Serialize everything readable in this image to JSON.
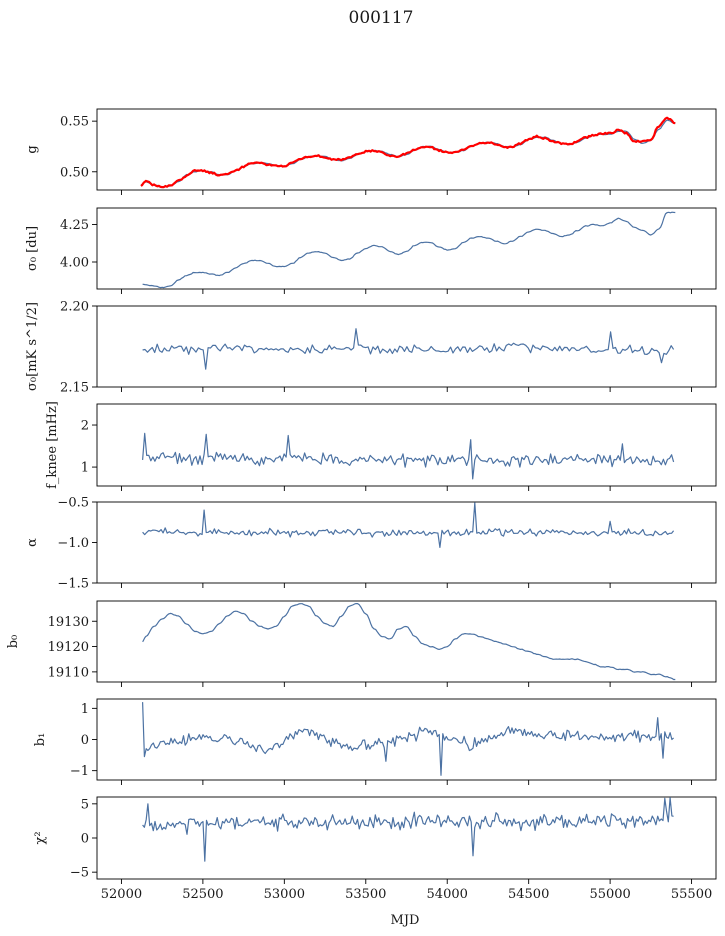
{
  "figure": {
    "title": "000117",
    "xlabel": "MJD",
    "xlim": [
      51850,
      55650
    ],
    "xticks": [
      52000,
      52500,
      53000,
      53500,
      54000,
      54500,
      55000,
      55500
    ],
    "line_color": "#4c72a3",
    "highlight_color": "#ff0000"
  },
  "chart_data": [
    {
      "type": "line",
      "ylabel": "g",
      "ylim": [
        0.482,
        0.562
      ],
      "yticks": [
        0.5,
        0.55
      ],
      "ytick_labels": [
        "0.50",
        "0.55"
      ],
      "series": [
        {
          "style": "smooth",
          "x": [
            52120,
            52150,
            52200,
            52250,
            52300,
            52350,
            52400,
            52450,
            52500,
            52550,
            52600,
            52650,
            52700,
            52750,
            52800,
            52850,
            52900,
            52950,
            53000,
            53050,
            53100,
            53150,
            53200,
            53250,
            53300,
            53350,
            53400,
            53450,
            53500,
            53550,
            53600,
            53650,
            53700,
            53750,
            53800,
            53850,
            53900,
            53950,
            54000,
            54050,
            54100,
            54150,
            54200,
            54250,
            54300,
            54350,
            54400,
            54450,
            54500,
            54550,
            54600,
            54650,
            54700,
            54750,
            54800,
            54850,
            54900,
            54950,
            55000,
            55050,
            55100,
            55150,
            55200,
            55250,
            55300,
            55350,
            55400
          ],
          "values": [
            0.487,
            0.49,
            0.487,
            0.485,
            0.486,
            0.49,
            0.497,
            0.5,
            0.501,
            0.5,
            0.497,
            0.497,
            0.501,
            0.505,
            0.508,
            0.509,
            0.508,
            0.506,
            0.505,
            0.508,
            0.512,
            0.515,
            0.516,
            0.515,
            0.512,
            0.511,
            0.513,
            0.517,
            0.52,
            0.521,
            0.52,
            0.517,
            0.515,
            0.517,
            0.521,
            0.525,
            0.525,
            0.522,
            0.519,
            0.519,
            0.521,
            0.525,
            0.528,
            0.529,
            0.528,
            0.525,
            0.524,
            0.527,
            0.532,
            0.534,
            0.534,
            0.531,
            0.528,
            0.527,
            0.529,
            0.533,
            0.536,
            0.537,
            0.537,
            0.54,
            0.54,
            0.532,
            0.528,
            0.531,
            0.542,
            0.551,
            0.548
          ]
        },
        {
          "style": "highlight",
          "x": [
            52120,
            52150,
            52200,
            52250,
            52300,
            52350,
            52400,
            52450,
            52500,
            52550,
            52600,
            52650,
            52700,
            52750,
            52800,
            52850,
            52900,
            52950,
            53000,
            53050,
            53100,
            53150,
            53200,
            53250,
            53300,
            53350,
            53400,
            53450,
            53500,
            53550,
            53600,
            53650,
            53700,
            53750,
            53800,
            53850,
            53900,
            53950,
            54000,
            54050,
            54100,
            54150,
            54200,
            54250,
            54300,
            54350,
            54400,
            54450,
            54500,
            54550,
            54600,
            54650,
            54700,
            54750,
            54800,
            54850,
            54900,
            54950,
            55000,
            55050,
            55100,
            55150,
            55200,
            55250,
            55300,
            55350,
            55400
          ],
          "values": [
            0.486,
            0.491,
            0.487,
            0.485,
            0.486,
            0.491,
            0.496,
            0.501,
            0.501,
            0.499,
            0.497,
            0.498,
            0.501,
            0.505,
            0.509,
            0.509,
            0.507,
            0.506,
            0.505,
            0.509,
            0.513,
            0.515,
            0.516,
            0.514,
            0.512,
            0.512,
            0.514,
            0.517,
            0.52,
            0.521,
            0.519,
            0.516,
            0.515,
            0.518,
            0.522,
            0.525,
            0.524,
            0.521,
            0.519,
            0.519,
            0.522,
            0.526,
            0.528,
            0.529,
            0.527,
            0.524,
            0.525,
            0.528,
            0.532,
            0.535,
            0.533,
            0.53,
            0.528,
            0.527,
            0.53,
            0.534,
            0.536,
            0.538,
            0.538,
            0.541,
            0.538,
            0.53,
            0.53,
            0.532,
            0.545,
            0.553,
            0.548
          ]
        }
      ]
    },
    {
      "type": "line",
      "ylabel": "σ₀ [du]",
      "ylim": [
        3.82,
        4.36
      ],
      "yticks": [
        4.0,
        4.25
      ],
      "ytick_labels": [
        "4.00",
        "4.25"
      ],
      "series": [
        {
          "style": "smooth",
          "x": [
            52130,
            52200,
            52250,
            52300,
            52350,
            52400,
            52450,
            52500,
            52550,
            52600,
            52650,
            52700,
            52750,
            52800,
            52850,
            52900,
            52950,
            53000,
            53050,
            53100,
            53150,
            53200,
            53250,
            53300,
            53350,
            53400,
            53450,
            53500,
            53550,
            53600,
            53650,
            53700,
            53750,
            53800,
            53850,
            53900,
            53950,
            54000,
            54050,
            54100,
            54150,
            54200,
            54250,
            54300,
            54350,
            54400,
            54450,
            54500,
            54550,
            54600,
            54650,
            54700,
            54750,
            54800,
            54850,
            54900,
            54950,
            55000,
            55050,
            55100,
            55150,
            55200,
            55250,
            55300,
            55350,
            55400
          ],
          "values": [
            3.85,
            3.84,
            3.83,
            3.84,
            3.88,
            3.91,
            3.93,
            3.93,
            3.92,
            3.91,
            3.93,
            3.96,
            3.99,
            4.01,
            4.01,
            3.99,
            3.97,
            3.97,
            3.99,
            4.03,
            4.06,
            4.07,
            4.06,
            4.03,
            4.01,
            4.02,
            4.06,
            4.09,
            4.11,
            4.1,
            4.07,
            4.05,
            4.07,
            4.11,
            4.13,
            4.13,
            4.1,
            4.08,
            4.09,
            4.13,
            4.16,
            4.17,
            4.16,
            4.14,
            4.12,
            4.14,
            4.17,
            4.2,
            4.22,
            4.21,
            4.19,
            4.17,
            4.18,
            4.21,
            4.24,
            4.25,
            4.24,
            4.26,
            4.29,
            4.27,
            4.23,
            4.21,
            4.18,
            4.22,
            4.33,
            4.33
          ]
        }
      ]
    },
    {
      "type": "line",
      "ylabel": "σ₀[mK s^1/2]",
      "ylim": [
        2.15,
        2.2
      ],
      "yticks": [
        2.15,
        2.2
      ],
      "ytick_labels": [
        "2.15",
        "2.20"
      ],
      "series": [
        {
          "style": "noise",
          "x_start": 52130,
          "x_end": 55390,
          "n": 220,
          "seed": 3,
          "level": [
            2.1721,
            2.1735,
            2.1745,
            2.1732,
            2.1728,
            2.1745,
            2.1722,
            2.1738,
            2.1728,
            2.1748,
            2.1738,
            2.173,
            2.1722,
            2.1725
          ],
          "amp": 0.0028,
          "spikes": [
            [
              52510,
              2.161
            ],
            [
              53440,
              2.186
            ],
            [
              55000,
              2.184
            ],
            [
              55320,
              2.165
            ]
          ]
        }
      ]
    },
    {
      "type": "line",
      "ylabel": "f_knee [mHz]",
      "ylim": [
        0.55,
        2.5
      ],
      "yticks": [
        1,
        2
      ],
      "ytick_labels": [
        "1",
        "2"
      ],
      "series": [
        {
          "style": "noise",
          "x_start": 52130,
          "x_end": 55390,
          "n": 260,
          "seed": 7,
          "level": [
            1.25,
            1.22,
            1.22,
            1.2,
            1.18,
            1.18,
            1.19,
            1.18,
            1.17,
            1.17,
            1.17,
            1.16,
            1.18,
            1.18
          ],
          "amp": 0.14,
          "spikes": [
            [
              52140,
              1.8
            ],
            [
              52520,
              1.78
            ],
            [
              53020,
              1.75
            ],
            [
              54150,
              1.65
            ],
            [
              54160,
              0.72
            ],
            [
              55070,
              1.55
            ]
          ]
        }
      ]
    },
    {
      "type": "line",
      "ylabel": "α",
      "ylim": [
        -1.5,
        -0.5
      ],
      "yticks": [
        -1.5,
        -1.0,
        -0.5
      ],
      "ytick_labels": [
        "−1.5",
        "−1.0",
        "−0.5"
      ],
      "series": [
        {
          "style": "noise",
          "x_start": 52130,
          "x_end": 55390,
          "n": 260,
          "seed": 11,
          "level": [
            -0.86,
            -0.87,
            -0.88,
            -0.87,
            -0.88,
            -0.87,
            -0.88,
            -0.88,
            -0.87,
            -0.88,
            -0.87,
            -0.88,
            -0.87,
            -0.89
          ],
          "amp": 0.04,
          "spikes": [
            [
              52510,
              -0.6
            ],
            [
              54170,
              -0.51
            ],
            [
              53950,
              -1.06
            ],
            [
              55000,
              -0.74
            ]
          ]
        }
      ]
    },
    {
      "type": "line",
      "ylabel": "b₀",
      "ylim": [
        19106,
        19138
      ],
      "yticks": [
        19110,
        19120,
        19130
      ],
      "ytick_labels": [
        "19110",
        "19120",
        "19130"
      ],
      "series": [
        {
          "style": "smooth",
          "x": [
            52130,
            52150,
            52200,
            52250,
            52300,
            52350,
            52400,
            52450,
            52500,
            52550,
            52600,
            52650,
            52700,
            52750,
            52800,
            52850,
            52900,
            52950,
            53000,
            53050,
            53100,
            53150,
            53200,
            53250,
            53300,
            53350,
            53400,
            53450,
            53500,
            53550,
            53600,
            53650,
            53700,
            53750,
            53800,
            53850,
            53900,
            53950,
            54000,
            54050,
            54100,
            54150,
            54200,
            54250,
            54300,
            54350,
            54400,
            54450,
            54500,
            54550,
            54600,
            54650,
            54700,
            54750,
            54800,
            54850,
            54900,
            54950,
            55000,
            55050,
            55100,
            55150,
            55200,
            55250,
            55300,
            55350,
            55400
          ],
          "values": [
            19122,
            19124,
            19128,
            19131,
            19133,
            19132,
            19129,
            19126,
            19125,
            19126,
            19129,
            19132,
            19134,
            19133,
            19130,
            19128,
            19127,
            19128,
            19132,
            19136,
            19137,
            19136,
            19132,
            19129,
            19128,
            19132,
            19136,
            19137,
            19133,
            19127,
            19124,
            19123,
            19127,
            19128,
            19124,
            19121,
            19120,
            19119,
            19120,
            19123,
            19125,
            19125,
            19124,
            19123,
            19122,
            19121,
            19120,
            19119,
            19118,
            19117,
            19116,
            19115,
            19115,
            19115,
            19115,
            19114,
            19113,
            19112,
            19112,
            19111,
            19111,
            19110,
            19110,
            19109,
            19109,
            19108,
            19107
          ]
        }
      ]
    },
    {
      "type": "line",
      "ylabel": "b₁",
      "ylim": [
        -1.3,
        1.3
      ],
      "yticks": [
        -1,
        0,
        1
      ],
      "ytick_labels": [
        "−1",
        "0",
        "1"
      ],
      "series": [
        {
          "style": "noise",
          "x_start": 52130,
          "x_end": 55390,
          "n": 300,
          "seed": 19,
          "level": [
            -0.25,
            0.0,
            0.05,
            -0.3,
            0.3,
            -0.25,
            -0.1,
            0.3,
            -0.2,
            0.3,
            0.15,
            0.05,
            0.1,
            0.05
          ],
          "amp": 0.16,
          "spikes": [
            [
              52135,
              1.2
            ],
            [
              52140,
              -0.55
            ],
            [
              53620,
              -0.7
            ],
            [
              53960,
              -1.15
            ],
            [
              55290,
              0.7
            ],
            [
              55330,
              -0.6
            ]
          ]
        }
      ]
    },
    {
      "type": "line",
      "ylabel": "χ²",
      "ylim": [
        -6,
        6
      ],
      "yticks": [
        -5,
        0,
        5
      ],
      "ytick_labels": [
        "−5",
        "0",
        "5"
      ],
      "series": [
        {
          "style": "noise",
          "x_start": 52130,
          "x_end": 55390,
          "n": 300,
          "seed": 23,
          "level": [
            1.5,
            2.0,
            2.2,
            2.4,
            2.3,
            2.2,
            2.4,
            2.3,
            2.3,
            2.3,
            2.2,
            2.4,
            2.4,
            3.0
          ],
          "amp": 1.0,
          "spikes": [
            [
              52510,
              -3.4
            ],
            [
              54160,
              -2.6
            ],
            [
              55340,
              5.8
            ],
            [
              52160,
              5.0
            ],
            [
              55370,
              5.9
            ]
          ]
        }
      ]
    }
  ]
}
